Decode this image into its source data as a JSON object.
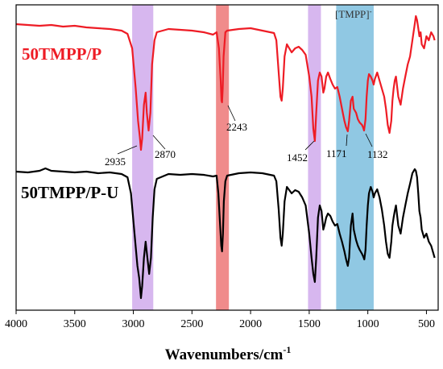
{
  "chart_data": {
    "type": "line",
    "xlabel": "Wavenumbers/cm",
    "xlabel_superscript": "-1",
    "xlim": [
      4000,
      400
    ],
    "x_reversed": true,
    "x_ticks": [
      4000,
      3500,
      3000,
      2500,
      2000,
      1500,
      1000,
      500
    ],
    "y_axis_shown": false,
    "grid": false,
    "colors": {
      "red": "#ee1c25",
      "black": "#000000",
      "purple_band": "#d7b7ef",
      "red_band": "#f08b8b",
      "blue_band": "#90c8e3"
    },
    "bands": [
      {
        "from": 3010,
        "to": 2830,
        "color": "purple"
      },
      {
        "from": 2295,
        "to": 2185,
        "color": "red"
      },
      {
        "from": 1510,
        "to": 1400,
        "color": "purple"
      },
      {
        "from": 1270,
        "to": 950,
        "color": "blue",
        "label": "[TMPP]",
        "label_superscript": "-"
      }
    ],
    "series": [
      {
        "name": "50TMPP/P",
        "color": "#ee1c25",
        "points": [
          [
            4000,
            30
          ],
          [
            3900,
            31
          ],
          [
            3800,
            32
          ],
          [
            3700,
            31
          ],
          [
            3600,
            33
          ],
          [
            3500,
            32
          ],
          [
            3400,
            34
          ],
          [
            3300,
            35
          ],
          [
            3200,
            36
          ],
          [
            3100,
            38
          ],
          [
            3050,
            42
          ],
          [
            3010,
            60
          ],
          [
            2980,
            110
          ],
          [
            2960,
            150
          ],
          [
            2945,
            170
          ],
          [
            2935,
            186
          ],
          [
            2925,
            172
          ],
          [
            2910,
            130
          ],
          [
            2895,
            115
          ],
          [
            2885,
            140
          ],
          [
            2870,
            162
          ],
          [
            2855,
            140
          ],
          [
            2840,
            80
          ],
          [
            2820,
            50
          ],
          [
            2800,
            40
          ],
          [
            2700,
            36
          ],
          [
            2600,
            37
          ],
          [
            2500,
            38
          ],
          [
            2400,
            40
          ],
          [
            2320,
            43
          ],
          [
            2290,
            40
          ],
          [
            2270,
            60
          ],
          [
            2255,
            100
          ],
          [
            2248,
            125
          ],
          [
            2243,
            127
          ],
          [
            2238,
            110
          ],
          [
            2230,
            70
          ],
          [
            2215,
            40
          ],
          [
            2200,
            38
          ],
          [
            2100,
            36
          ],
          [
            2000,
            35
          ],
          [
            1900,
            38
          ],
          [
            1800,
            41
          ],
          [
            1780,
            50
          ],
          [
            1760,
            90
          ],
          [
            1745,
            120
          ],
          [
            1735,
            125
          ],
          [
            1725,
            110
          ],
          [
            1710,
            70
          ],
          [
            1690,
            55
          ],
          [
            1650,
            65
          ],
          [
            1620,
            60
          ],
          [
            1590,
            58
          ],
          [
            1560,
            62
          ],
          [
            1530,
            68
          ],
          [
            1500,
            95
          ],
          [
            1480,
            120
          ],
          [
            1465,
            160
          ],
          [
            1452,
            175
          ],
          [
            1440,
            140
          ],
          [
            1425,
            100
          ],
          [
            1410,
            90
          ],
          [
            1395,
            95
          ],
          [
            1380,
            115
          ],
          [
            1370,
            110
          ],
          [
            1355,
            95
          ],
          [
            1340,
            90
          ],
          [
            1320,
            98
          ],
          [
            1300,
            105
          ],
          [
            1280,
            110
          ],
          [
            1260,
            108
          ],
          [
            1240,
            120
          ],
          [
            1220,
            135
          ],
          [
            1200,
            150
          ],
          [
            1185,
            158
          ],
          [
            1171,
            163
          ],
          [
            1160,
            150
          ],
          [
            1145,
            125
          ],
          [
            1130,
            120
          ],
          [
            1120,
            135
          ],
          [
            1100,
            140
          ],
          [
            1085,
            148
          ],
          [
            1070,
            152
          ],
          [
            1050,
            155
          ],
          [
            1040,
            158
          ],
          [
            1032,
            162
          ],
          [
            1020,
            148
          ],
          [
            1010,
            120
          ],
          [
            1000,
            100
          ],
          [
            990,
            92
          ],
          [
            975,
            95
          ],
          [
            960,
            100
          ],
          [
            950,
            105
          ],
          [
            940,
            98
          ],
          [
            920,
            90
          ],
          [
            900,
            100
          ],
          [
            880,
            110
          ],
          [
            860,
            120
          ],
          [
            845,
            135
          ],
          [
            830,
            155
          ],
          [
            815,
            165
          ],
          [
            800,
            150
          ],
          [
            790,
            125
          ],
          [
            780,
            110
          ],
          [
            770,
            100
          ],
          [
            760,
            95
          ],
          [
            740,
            120
          ],
          [
            720,
            130
          ],
          [
            700,
            110
          ],
          [
            680,
            95
          ],
          [
            660,
            80
          ],
          [
            640,
            70
          ],
          [
            620,
            50
          ],
          [
            600,
            30
          ],
          [
            590,
            20
          ],
          [
            580,
            25
          ],
          [
            570,
            35
          ],
          [
            560,
            45
          ],
          [
            550,
            40
          ],
          [
            540,
            55
          ],
          [
            520,
            60
          ],
          [
            500,
            45
          ],
          [
            480,
            50
          ],
          [
            460,
            40
          ],
          [
            440,
            45
          ],
          [
            430,
            50
          ]
        ]
      },
      {
        "name": "50TMPP/P-U",
        "color": "#000000",
        "points": [
          [
            4000,
            213
          ],
          [
            3900,
            214
          ],
          [
            3800,
            212
          ],
          [
            3750,
            209
          ],
          [
            3700,
            212
          ],
          [
            3600,
            213
          ],
          [
            3500,
            214
          ],
          [
            3400,
            213
          ],
          [
            3300,
            215
          ],
          [
            3200,
            214
          ],
          [
            3100,
            216
          ],
          [
            3050,
            220
          ],
          [
            3020,
            240
          ],
          [
            2990,
            290
          ],
          [
            2965,
            330
          ],
          [
            2950,
            345
          ],
          [
            2935,
            370
          ],
          [
            2925,
            355
          ],
          [
            2910,
            320
          ],
          [
            2895,
            300
          ],
          [
            2880,
            320
          ],
          [
            2865,
            340
          ],
          [
            2850,
            320
          ],
          [
            2835,
            270
          ],
          [
            2820,
            235
          ],
          [
            2800,
            222
          ],
          [
            2700,
            216
          ],
          [
            2600,
            217
          ],
          [
            2500,
            216
          ],
          [
            2400,
            217
          ],
          [
            2320,
            219
          ],
          [
            2290,
            218
          ],
          [
            2275,
            240
          ],
          [
            2260,
            280
          ],
          [
            2250,
            305
          ],
          [
            2243,
            312
          ],
          [
            2236,
            290
          ],
          [
            2228,
            250
          ],
          [
            2215,
            225
          ],
          [
            2200,
            218
          ],
          [
            2100,
            215
          ],
          [
            2000,
            214
          ],
          [
            1900,
            215
          ],
          [
            1800,
            218
          ],
          [
            1780,
            225
          ],
          [
            1760,
            260
          ],
          [
            1745,
            295
          ],
          [
            1735,
            305
          ],
          [
            1725,
            290
          ],
          [
            1710,
            250
          ],
          [
            1690,
            232
          ],
          [
            1650,
            240
          ],
          [
            1620,
            236
          ],
          [
            1590,
            238
          ],
          [
            1560,
            245
          ],
          [
            1530,
            255
          ],
          [
            1500,
            290
          ],
          [
            1480,
            320
          ],
          [
            1465,
            340
          ],
          [
            1452,
            350
          ],
          [
            1440,
            320
          ],
          [
            1425,
            270
          ],
          [
            1410,
            255
          ],
          [
            1395,
            262
          ],
          [
            1380,
            285
          ],
          [
            1370,
            280
          ],
          [
            1355,
            270
          ],
          [
            1340,
            265
          ],
          [
            1320,
            268
          ],
          [
            1300,
            275
          ],
          [
            1280,
            280
          ],
          [
            1260,
            278
          ],
          [
            1240,
            290
          ],
          [
            1220,
            300
          ],
          [
            1200,
            312
          ],
          [
            1185,
            322
          ],
          [
            1171,
            330
          ],
          [
            1160,
            320
          ],
          [
            1145,
            280
          ],
          [
            1130,
            265
          ],
          [
            1120,
            285
          ],
          [
            1100,
            298
          ],
          [
            1085,
            305
          ],
          [
            1070,
            310
          ],
          [
            1050,
            315
          ],
          [
            1040,
            318
          ],
          [
            1030,
            322
          ],
          [
            1020,
            310
          ],
          [
            1010,
            280
          ],
          [
            1000,
            255
          ],
          [
            990,
            240
          ],
          [
            975,
            232
          ],
          [
            960,
            238
          ],
          [
            950,
            245
          ],
          [
            940,
            240
          ],
          [
            920,
            235
          ],
          [
            900,
            245
          ],
          [
            880,
            260
          ],
          [
            860,
            280
          ],
          [
            845,
            300
          ],
          [
            830,
            315
          ],
          [
            815,
            320
          ],
          [
            800,
            300
          ],
          [
            790,
            280
          ],
          [
            780,
            270
          ],
          [
            770,
            262
          ],
          [
            760,
            255
          ],
          [
            740,
            280
          ],
          [
            720,
            290
          ],
          [
            700,
            270
          ],
          [
            680,
            255
          ],
          [
            660,
            240
          ],
          [
            640,
            228
          ],
          [
            620,
            215
          ],
          [
            600,
            210
          ],
          [
            590,
            212
          ],
          [
            580,
            220
          ],
          [
            570,
            240
          ],
          [
            560,
            262
          ],
          [
            550,
            270
          ],
          [
            540,
            285
          ],
          [
            520,
            295
          ],
          [
            500,
            290
          ],
          [
            480,
            300
          ],
          [
            460,
            305
          ],
          [
            440,
            315
          ],
          [
            430,
            320
          ]
        ]
      }
    ],
    "labels": {
      "series_red": "50TMPP/P",
      "series_black": "50TMPP/P-U"
    },
    "annotations": [
      {
        "text": "2935",
        "target_x": 2935,
        "series": "50TMPP/P"
      },
      {
        "text": "2870",
        "target_x": 2870,
        "series": "50TMPP/P"
      },
      {
        "text": "2243",
        "target_x": 2243,
        "series": "50TMPP/P"
      },
      {
        "text": "1452",
        "target_x": 1452,
        "series": "50TMPP/P"
      },
      {
        "text": "1171",
        "target_x": 1171,
        "series": "50TMPP/P"
      },
      {
        "text": "1132",
        "target_x": 1132,
        "series": "50TMPP/P"
      }
    ]
  }
}
